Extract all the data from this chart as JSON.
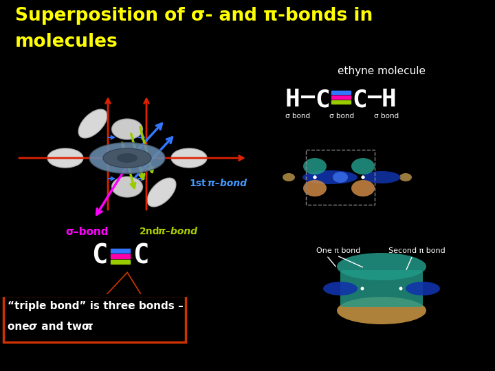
{
  "background_color": "#000000",
  "title_line1": "Superposition of σ- and π-bonds in",
  "title_line2": "molecules",
  "title_color": "#ffff00",
  "title_fontsize": 19,
  "subtitle": "ethyne molecule",
  "subtitle_color": "#ffffff",
  "subtitle_fontsize": 11,
  "sigma_bond_label": "σ–bond",
  "sigma_bond_color": "#ff00ff",
  "pi1_label": "1st",
  "pi1_pi": "π–bond",
  "pi1_color": "#4499ff",
  "pi2_label": "2nd",
  "pi2_pi": "π–bond",
  "pi2_color": "#aacc00",
  "callout_text_line1": "“triple bond” is three bonds –",
  "callout_text_line2_a": "one ",
  "callout_text_line2_b": "σ",
  "callout_text_line2_c": " and two ",
  "callout_text_line2_d": "π",
  "callout_color": "#cc3300",
  "callout_text_color": "#ffffff",
  "callout_fontsize": 11,
  "red_arrow_color": "#dd2200",
  "blue_arrow_color": "#3377ff",
  "green_arrow_color": "#99cc00",
  "magenta_arrow_color": "#ff00ff"
}
